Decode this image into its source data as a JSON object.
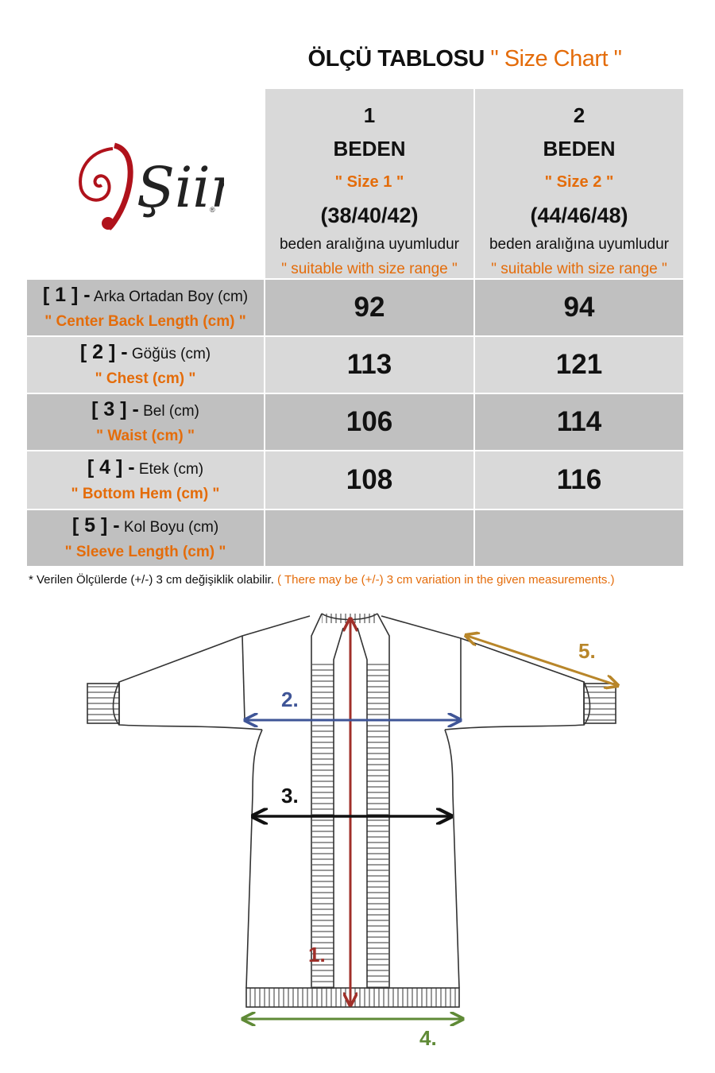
{
  "title": {
    "main": "ÖLÇÜ TABLOSU",
    "english": "\" Size Chart \""
  },
  "logo": {
    "text": "Şiir",
    "mark": "®"
  },
  "columns": [
    {
      "number": "1",
      "beden": "BEDEN",
      "size": "\" Size 1 \"",
      "range": "(38/40/42)",
      "note_tr": "beden aralığına uyumludur",
      "note_en": "\" suitable with size range \""
    },
    {
      "number": "2",
      "beden": "BEDEN",
      "size": "\" Size 2 \"",
      "range": "(44/46/48)",
      "note_tr": "beden aralığına uyumludur",
      "note_en": "\" suitable with size range \""
    }
  ],
  "rows": [
    {
      "index": "[ 1 ] -",
      "label_tr": "Arka Ortadan Boy (cm)",
      "label_en": "\" Center Back Length (cm) \"",
      "values": [
        "92",
        "94"
      ]
    },
    {
      "index": "[ 2 ] -",
      "label_tr": "Göğüs (cm)",
      "label_en": "\" Chest (cm) \"",
      "values": [
        "113",
        "121"
      ]
    },
    {
      "index": "[ 3 ] -",
      "label_tr": "Bel (cm)",
      "label_en": "\" Waist (cm) \"",
      "values": [
        "106",
        "114"
      ]
    },
    {
      "index": "[ 4 ] -",
      "label_tr": "Etek (cm)",
      "label_en": "\" Bottom Hem (cm) \"",
      "values": [
        "108",
        "116"
      ]
    },
    {
      "index": "[ 5 ] -",
      "label_tr": "Kol Boyu (cm)",
      "label_en": "\" Sleeve Length (cm) \"",
      "values": [
        "",
        ""
      ]
    }
  ],
  "footnote": {
    "tr": "* Verilen Ölçülerde (+/-) 3 cm değişiklik olabilir.",
    "en": "( There may be (+/-) 3 cm variation in the given measurements.)"
  },
  "diagram": {
    "labels": {
      "length": "1.",
      "chest": "2.",
      "waist": "3.",
      "hem": "4.",
      "sleeve": "5."
    },
    "colors": {
      "length": "#a0302a",
      "chest": "#3f5597",
      "waist": "#111111",
      "hem": "#5f8a36",
      "sleeve": "#b8862a"
    }
  },
  "colors": {
    "accent": "#e46c0a",
    "header_bg": "#d9d9d9",
    "row_dark": "#c0c0c0",
    "row_light": "#d9d9d9",
    "logo_red": "#b0121b"
  }
}
